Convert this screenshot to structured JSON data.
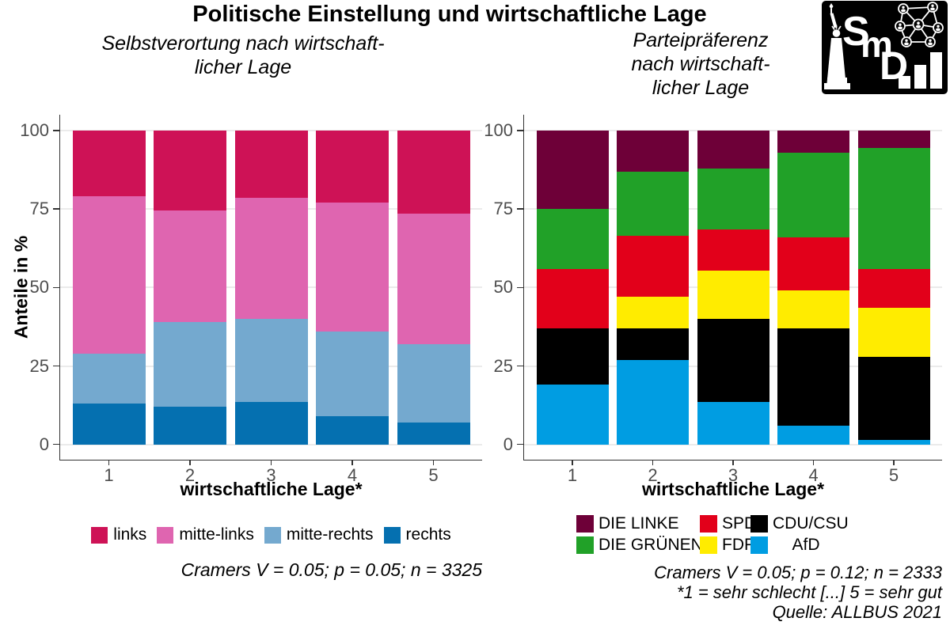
{
  "title": "Politische Einstellung und wirtschaftliche Lage",
  "logo": {
    "letters": "SmD",
    "icons": [
      "statue-of-liberty",
      "network-graph",
      "bar-chart"
    ],
    "bg_color": "#000000",
    "fg_color": "#ffffff"
  },
  "style": {
    "axis_color": "#333333",
    "grid_color": "#EBEBEB",
    "tick_label_color": "#4D4D4D"
  },
  "charts": [
    {
      "subtitle": "Selbstverortung nach wirtschaft-\nlicher Lage",
      "xlabel": "wirtschaftliche Lage*",
      "ylabel": "Anteile in %",
      "caption": "Cramers V = 0.05; p = 0.05; n = 3325"
    },
    {
      "subtitle": "Parteipräferenz\nnach wirtschaft-\nlicher Lage",
      "xlabel": "wirtschaftliche Lage*",
      "ylabel": "",
      "caption": "Cramers V = 0.05; p = 0.12; n = 2333\n*1 = sehr schlecht [...] 5 = sehr gut\nQuelle: ALLBUS 2021"
    }
  ],
  "chart_data": [
    {
      "type": "bar",
      "stacked": true,
      "title": "Selbstverortung nach wirtschaftlicher Lage",
      "xlabel": "wirtschaftliche Lage*",
      "ylabel": "Anteile in %",
      "ylim": [
        0,
        100
      ],
      "yticks": [
        0,
        25,
        50,
        75,
        100
      ],
      "categories": [
        "1",
        "2",
        "3",
        "4",
        "5"
      ],
      "grid": "horizontal-major",
      "legend_position": "bottom",
      "series": [
        {
          "name": "links",
          "color": "#CE1256",
          "values": [
            21,
            25.5,
            21.5,
            23,
            26.5
          ]
        },
        {
          "name": "mitte-links",
          "color": "#DF65B0",
          "values": [
            50,
            35.5,
            38.5,
            41,
            41.5
          ]
        },
        {
          "name": "mitte-rechts",
          "color": "#74A9CF",
          "values": [
            16,
            27,
            26.5,
            27,
            25
          ]
        },
        {
          "name": "rechts",
          "color": "#0570B0",
          "values": [
            13,
            12,
            13.5,
            9,
            7
          ]
        }
      ],
      "stack_order_bottom_to_top": [
        "rechts",
        "mitte-rechts",
        "mitte-links",
        "links"
      ],
      "legend_rows": [
        [
          "links",
          "mitte-links",
          "mitte-rechts",
          "rechts"
        ]
      ]
    },
    {
      "type": "bar",
      "stacked": true,
      "title": "Parteipräferenz nach wirtschaftlicher Lage",
      "xlabel": "wirtschaftliche Lage*",
      "ylabel": "Anteile in %",
      "ylim": [
        0,
        100
      ],
      "yticks": [
        0,
        25,
        50,
        75,
        100
      ],
      "categories": [
        "1",
        "2",
        "3",
        "4",
        "5"
      ],
      "grid": "horizontal-major",
      "legend_position": "bottom",
      "series": [
        {
          "name": "DIE LINKE",
          "color": "#6E0038",
          "values": [
            25,
            13,
            12,
            7,
            5.5
          ]
        },
        {
          "name": "DIE GRÜNEN",
          "color": "#21A128",
          "values": [
            19,
            20.5,
            19.5,
            27,
            38.5
          ]
        },
        {
          "name": "SPD",
          "color": "#E2001A",
          "values": [
            19,
            19.5,
            13,
            17,
            12.5
          ]
        },
        {
          "name": "FDP",
          "color": "#FFEC00",
          "values": [
            0,
            10,
            15.5,
            12,
            15.5
          ]
        },
        {
          "name": "CDU/CSU",
          "color": "#000000",
          "values": [
            18,
            10,
            26.5,
            31,
            26.5
          ]
        },
        {
          "name": "AfD",
          "color": "#009DE2",
          "values": [
            19,
            27,
            13.5,
            6,
            1.5
          ]
        }
      ],
      "stack_order_bottom_to_top": [
        "AfD",
        "CDU/CSU",
        "FDP",
        "SPD",
        "DIE GRÜNEN",
        "DIE LINKE"
      ],
      "legend_rows": [
        [
          "DIE LINKE",
          "SPD",
          "CDU/CSU"
        ],
        [
          "DIE GRÜNEN",
          "FDP",
          "AfD"
        ]
      ]
    }
  ]
}
